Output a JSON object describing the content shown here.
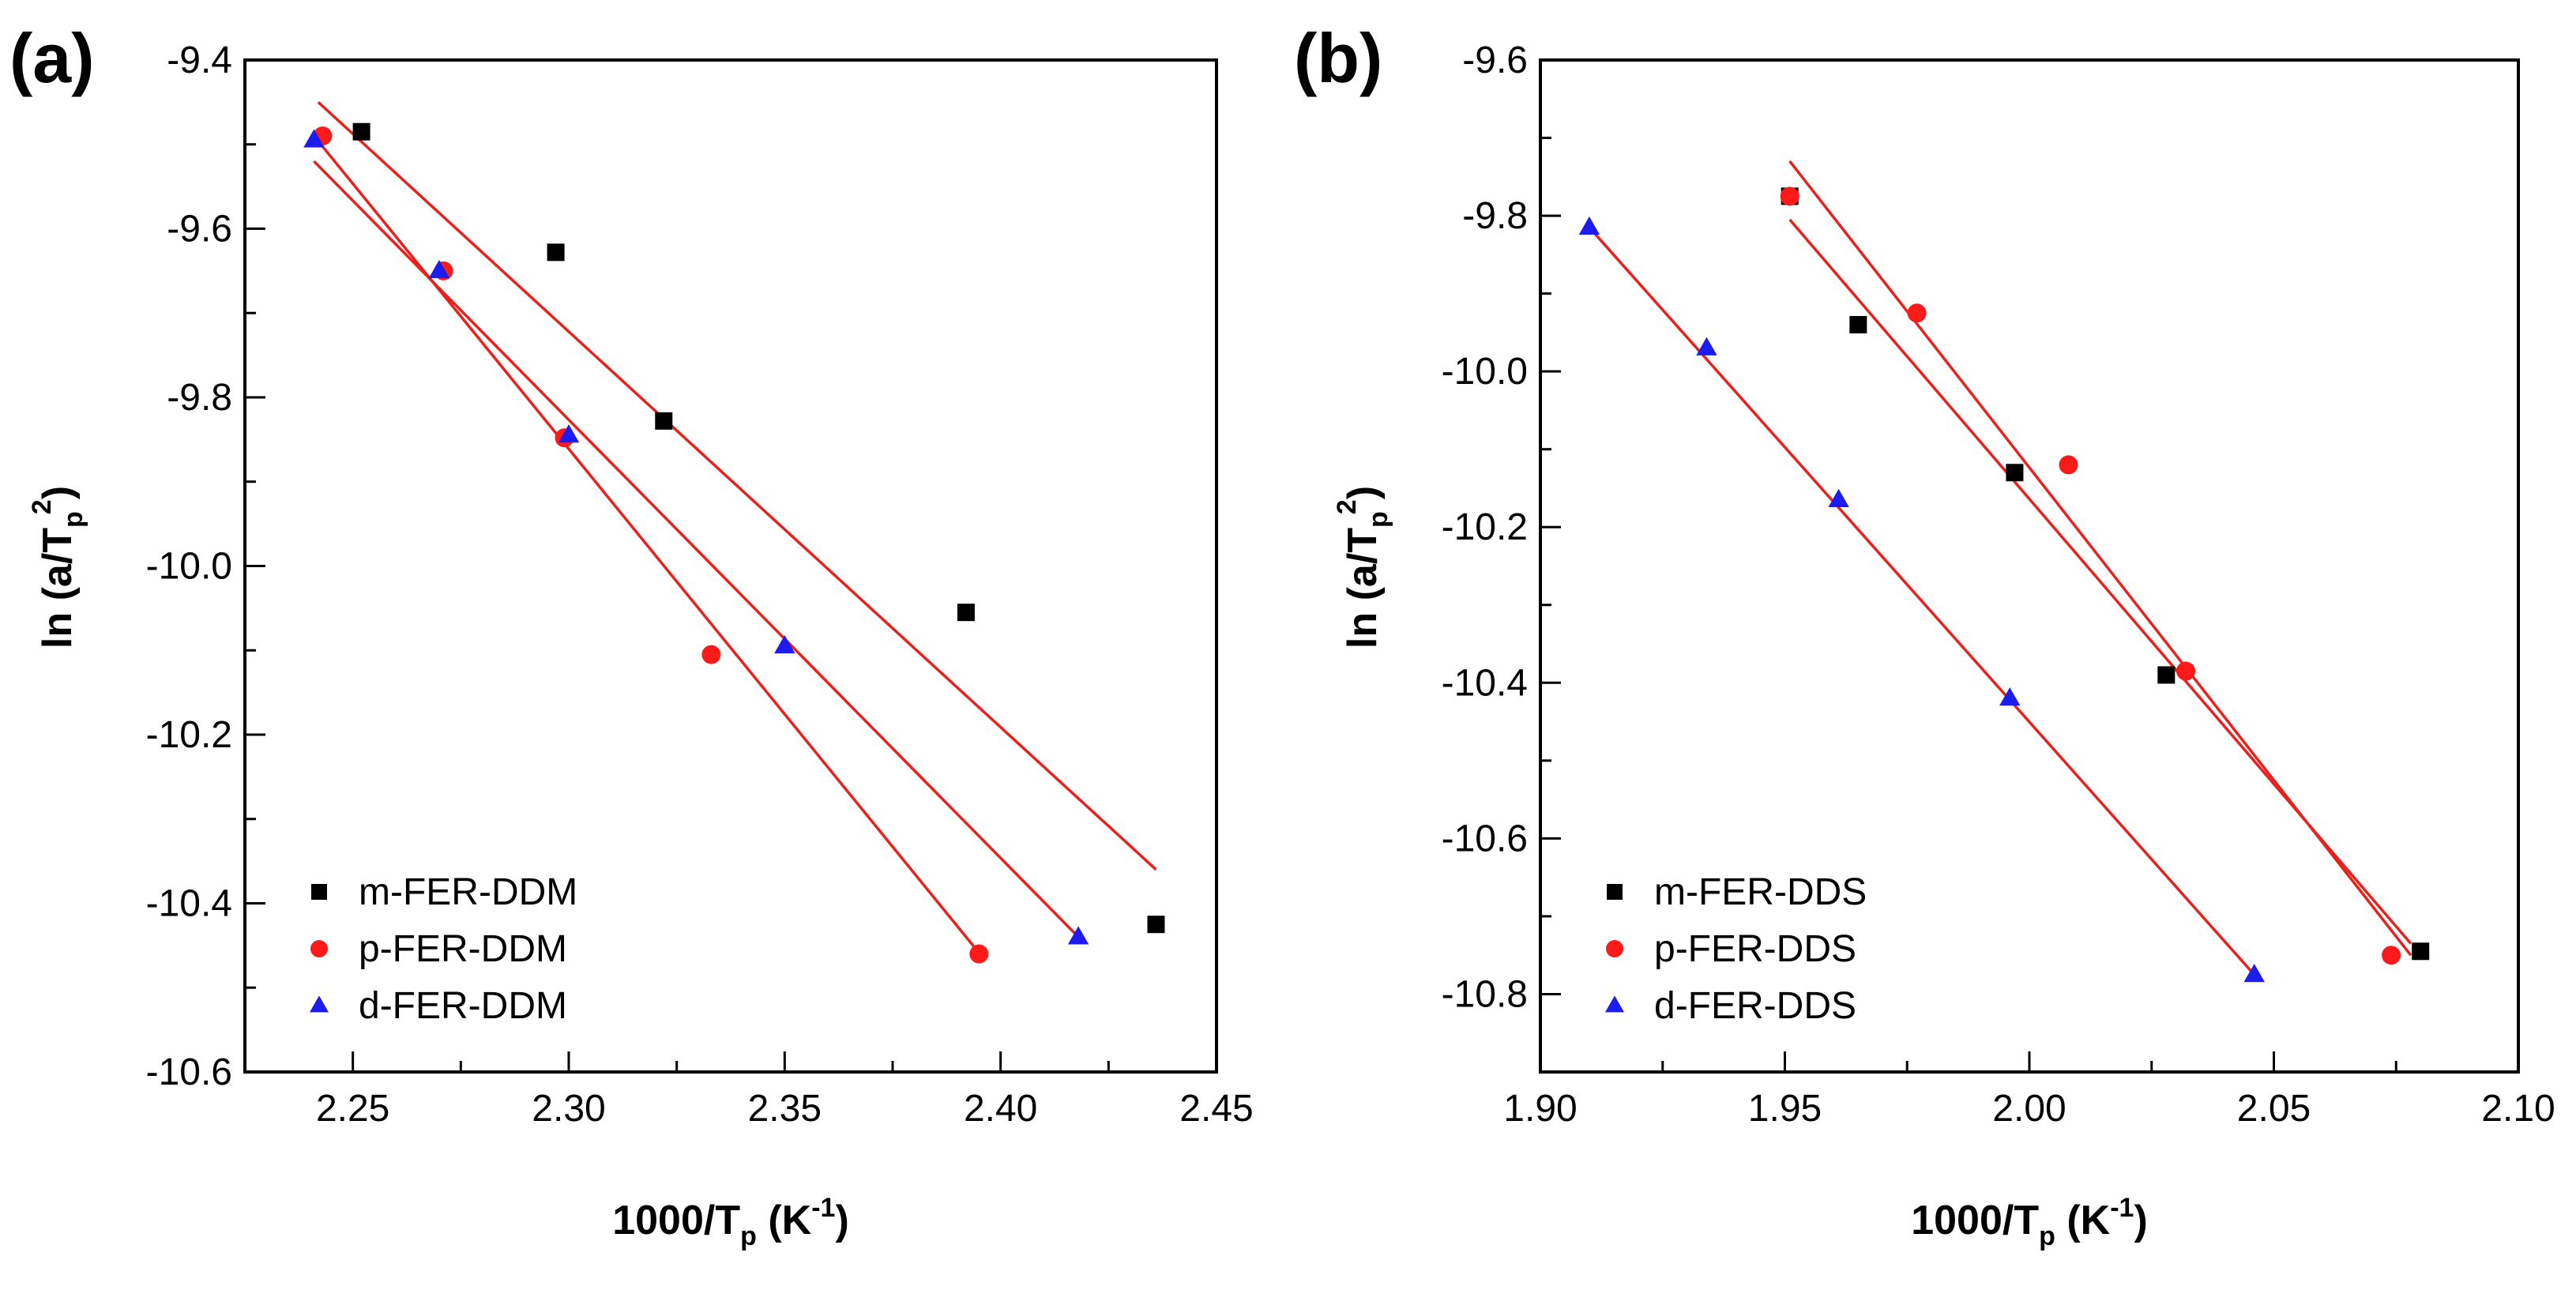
{
  "figure": {
    "background": "#ffffff"
  },
  "chart_data": [
    {
      "panel": "(a)",
      "type": "scatter",
      "xlabel": {
        "main": "1000/T",
        "sub": "p",
        "unit": " (K",
        "sup": "-1",
        "close": ")"
      },
      "ylabel": {
        "main": "ln (a/T",
        "sub": "p",
        "sup": "2",
        "close": ")"
      },
      "xlim": [
        2.225,
        2.45
      ],
      "ylim": [
        -10.6,
        -9.4
      ],
      "xticks": [
        2.25,
        2.3,
        2.35,
        2.4,
        2.45
      ],
      "xtick_labels": [
        "2.25",
        "2.30",
        "2.35",
        "2.40",
        "2.45"
      ],
      "yticks": [
        -9.4,
        -9.6,
        -9.8,
        -10.0,
        -10.2,
        -10.4,
        -10.6
      ],
      "ytick_labels": [
        "-9.4",
        "-9.6",
        "-9.8",
        "-10.0",
        "-10.2",
        "-10.4",
        "-10.6"
      ],
      "legend_position": "bottom-left",
      "grid": false,
      "series": [
        {
          "name": "m-FER-DDM",
          "marker": "square",
          "color": "#000000",
          "x": [
            2.252,
            2.297,
            2.322,
            2.392,
            2.436
          ],
          "y": [
            -9.485,
            -9.628,
            -9.828,
            -10.055,
            -10.425
          ],
          "fit": {
            "x": [
              2.242,
              2.436
            ],
            "y": [
              -9.45,
              -10.36
            ],
            "color": "#e8211d"
          }
        },
        {
          "name": "p-FER-DDM",
          "marker": "circle",
          "color": "#ff1a1a",
          "x": [
            2.243,
            2.271,
            2.299,
            2.333,
            2.395
          ],
          "y": [
            -9.49,
            -9.65,
            -9.848,
            -10.105,
            -10.46
          ],
          "fit": {
            "x": [
              2.241,
              2.396
            ],
            "y": [
              -9.49,
              -10.465
            ],
            "color": "#e8211d"
          }
        },
        {
          "name": "d-FER-DDM",
          "marker": "triangle",
          "color": "#1c1cf0",
          "x": [
            2.241,
            2.27,
            2.3,
            2.35,
            2.418
          ],
          "y": [
            -9.495,
            -9.65,
            -9.845,
            -10.095,
            -10.44
          ],
          "fit": {
            "x": [
              2.241,
              2.419
            ],
            "y": [
              -9.52,
              -10.445
            ],
            "color": "#e8211d"
          }
        }
      ]
    },
    {
      "panel": "(b)",
      "type": "scatter",
      "xlabel": {
        "main": "1000/T",
        "sub": "p",
        "unit": " (K",
        "sup": "-1",
        "close": ")"
      },
      "ylabel": {
        "main": "ln (a/T",
        "sub": "p",
        "sup": "2",
        "close": ")"
      },
      "xlim": [
        1.9,
        2.1
      ],
      "ylim": [
        -10.9,
        -9.6
      ],
      "xticks": [
        1.9,
        1.95,
        2.0,
        2.05,
        2.1
      ],
      "xtick_labels": [
        "1.90",
        "1.95",
        "2.00",
        "2.05",
        "2.10"
      ],
      "yticks": [
        -9.6,
        -9.8,
        -10.0,
        -10.2,
        -10.4,
        -10.6,
        -10.8
      ],
      "ytick_labels": [
        "-9.6",
        "-9.8",
        "-10.0",
        "-10.2",
        "-10.4",
        "-10.6",
        "-10.8"
      ],
      "legend_position": "bottom-left",
      "grid": false,
      "series": [
        {
          "name": "m-FER-DDS",
          "marker": "square",
          "color": "#000000",
          "x": [
            1.951,
            1.965,
            1.997,
            2.028,
            2.08
          ],
          "y": [
            -9.775,
            -9.94,
            -10.13,
            -10.39,
            -10.745
          ],
          "fit": {
            "x": [
              1.951,
              2.078
            ],
            "y": [
              -9.805,
              -10.735
            ],
            "color": "#e8211d"
          }
        },
        {
          "name": "p-FER-DDS",
          "marker": "circle",
          "color": "#ff1a1a",
          "x": [
            1.951,
            1.977,
            2.008,
            2.032,
            2.074
          ],
          "y": [
            -9.775,
            -9.925,
            -10.12,
            -10.385,
            -10.75
          ],
          "fit": {
            "x": [
              1.951,
              2.078
            ],
            "y": [
              -9.73,
              -10.75
            ],
            "color": "#e8211d"
          }
        },
        {
          "name": "d-FER-DDS",
          "marker": "triangle",
          "color": "#1c1cf0",
          "x": [
            1.91,
            1.934,
            1.961,
            1.996,
            2.046
          ],
          "y": [
            -9.815,
            -9.97,
            -10.165,
            -10.42,
            -10.775
          ],
          "fit": {
            "x": [
              1.91,
              2.046
            ],
            "y": [
              -9.815,
              -10.775
            ],
            "color": "#e8211d"
          }
        }
      ]
    }
  ]
}
